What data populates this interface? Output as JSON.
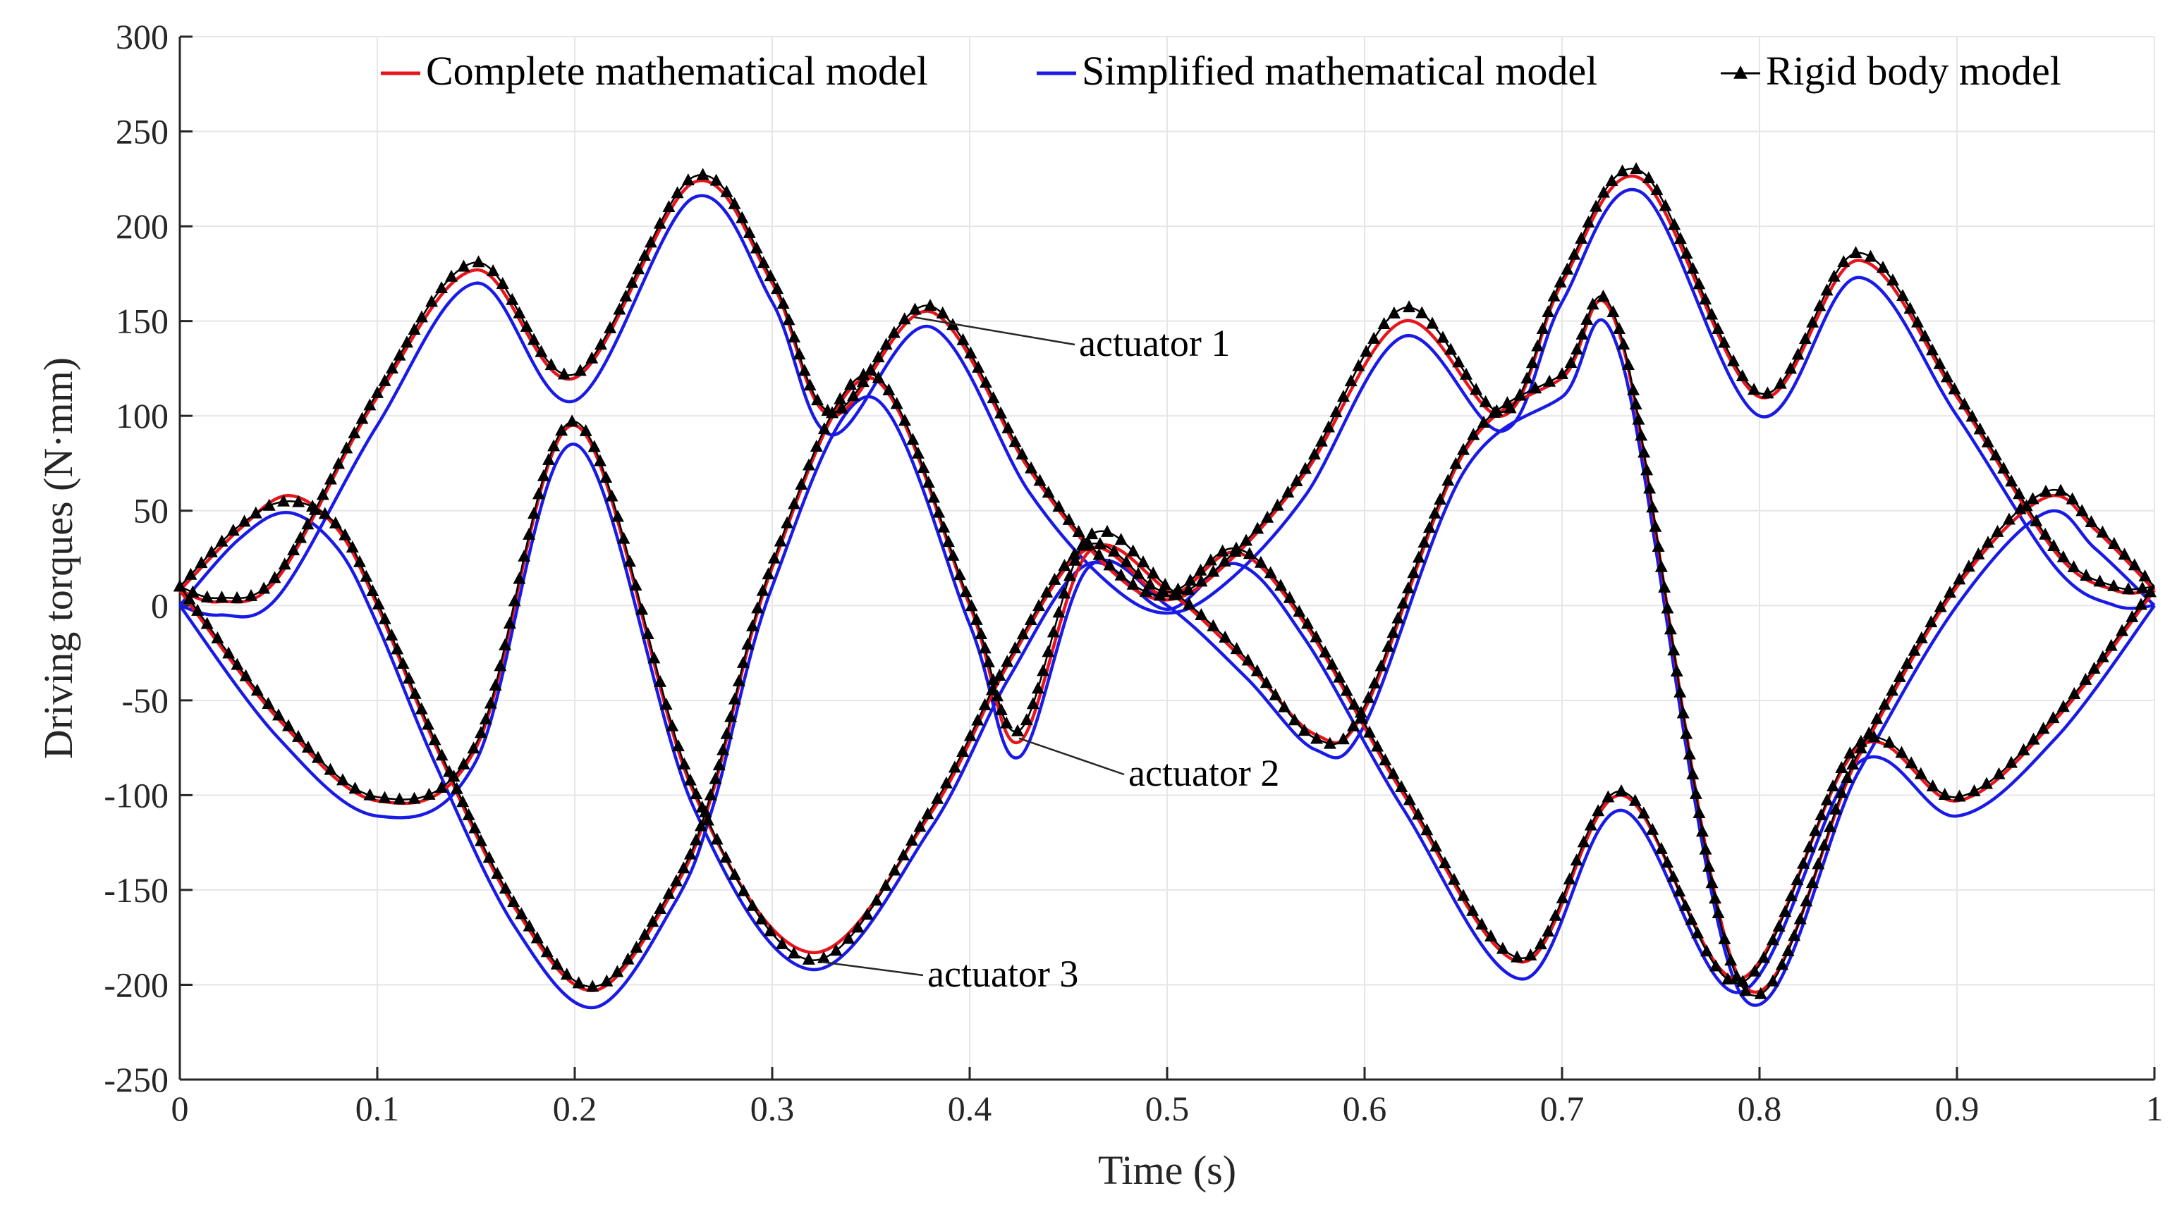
{
  "chart_data": {
    "type": "line",
    "title": "",
    "xlabel": "Time (s)",
    "ylabel": "Driving torques (N·mm)",
    "xlim": [
      0,
      1
    ],
    "ylim": [
      -250,
      300
    ],
    "xticks": [
      0,
      0.1,
      0.2,
      0.3,
      0.4,
      0.5,
      0.6,
      0.7,
      0.8,
      0.9,
      1
    ],
    "xtick_labels": [
      "0",
      "0.1",
      "0.2",
      "0.3",
      "0.4",
      "0.5",
      "0.6",
      "0.7",
      "0.8",
      "0.9",
      "1"
    ],
    "yticks": [
      -250,
      -200,
      -150,
      -100,
      -50,
      0,
      50,
      100,
      150,
      200,
      250,
      300
    ],
    "ytick_labels": [
      "-250",
      "-200",
      "-150",
      "-100",
      "-50",
      "0",
      "50",
      "100",
      "150",
      "200",
      "250",
      "300"
    ],
    "grid": true,
    "legend": {
      "placement": "top-right",
      "entries": [
        {
          "label": "Complete mathematical model",
          "color": "#e8141c",
          "marker": "none"
        },
        {
          "label": "Simplified mathematical model",
          "color": "#1a1ae6",
          "marker": "none"
        },
        {
          "label": "Rigid body model",
          "color": "#000000",
          "marker": "triangle"
        }
      ]
    },
    "series": [
      {
        "legend_label": "Complete mathematical model",
        "actuator": "actuator 1",
        "color": "#e8141c",
        "x": [
          0,
          0.02,
          0.05,
          0.1,
          0.15,
          0.2,
          0.26,
          0.3,
          0.33,
          0.38,
          0.43,
          0.47,
          0.5,
          0.53,
          0.57,
          0.62,
          0.67,
          0.7,
          0.74,
          0.8,
          0.85,
          0.9,
          0.95,
          0.98,
          1
        ],
        "y": [
          8,
          2,
          15,
          110,
          177,
          120,
          223,
          170,
          100,
          155,
          72,
          20,
          3,
          22,
          70,
          150,
          100,
          170,
          225,
          110,
          182,
          110,
          28,
          8,
          8
        ]
      },
      {
        "legend_label": "Simplified mathematical model",
        "actuator": "actuator 1",
        "color": "#1a1ae6",
        "x": [
          0,
          0.02,
          0.05,
          0.1,
          0.15,
          0.2,
          0.26,
          0.3,
          0.33,
          0.38,
          0.43,
          0.47,
          0.5,
          0.53,
          0.57,
          0.62,
          0.67,
          0.7,
          0.74,
          0.8,
          0.85,
          0.9,
          0.95,
          0.98,
          1
        ],
        "y": [
          0,
          -5,
          5,
          95,
          170,
          108,
          215,
          160,
          90,
          147,
          60,
          12,
          -4,
          12,
          58,
          142,
          92,
          160,
          218,
          100,
          173,
          100,
          20,
          0,
          0
        ]
      },
      {
        "legend_label": "Complete mathematical model",
        "actuator": "actuator 2",
        "color": "#e8141c",
        "x": [
          0,
          0.03,
          0.055,
          0.08,
          0.1,
          0.13,
          0.17,
          0.21,
          0.25,
          0.27,
          0.3,
          0.35,
          0.4,
          0.425,
          0.46,
          0.5,
          0.54,
          0.575,
          0.6,
          0.65,
          0.7,
          0.73,
          0.79,
          0.85,
          0.9,
          0.945,
          0.97,
          1
        ],
        "y": [
          8,
          40,
          58,
          40,
          0,
          -75,
          -160,
          -203,
          -150,
          -98,
          20,
          120,
          0,
          -72,
          28,
          8,
          -30,
          -68,
          -55,
          80,
          120,
          140,
          -197,
          -80,
          10,
          57,
          40,
          8
        ]
      },
      {
        "legend_label": "Simplified mathematical model",
        "actuator": "actuator 2",
        "color": "#1a1ae6",
        "x": [
          0,
          0.03,
          0.055,
          0.08,
          0.1,
          0.13,
          0.17,
          0.21,
          0.25,
          0.27,
          0.3,
          0.35,
          0.4,
          0.425,
          0.46,
          0.5,
          0.54,
          0.575,
          0.6,
          0.65,
          0.7,
          0.73,
          0.79,
          0.85,
          0.9,
          0.945,
          0.97,
          1
        ],
        "y": [
          0,
          35,
          49,
          30,
          -10,
          -85,
          -170,
          -212,
          -158,
          -106,
          10,
          110,
          -10,
          -80,
          20,
          0,
          -38,
          -76,
          -63,
          70,
          110,
          130,
          -204,
          -88,
          0,
          49,
          30,
          0
        ]
      },
      {
        "legend_label": "Complete mathematical model",
        "actuator": "actuator 3",
        "color": "#e8141c",
        "x": [
          0,
          0.05,
          0.1,
          0.15,
          0.2,
          0.26,
          0.32,
          0.38,
          0.42,
          0.46,
          0.5,
          0.535,
          0.57,
          0.62,
          0.68,
          0.73,
          0.79,
          0.85,
          0.9,
          0.95,
          1
        ],
        "y": [
          8,
          -60,
          -103,
          -75,
          95,
          -98,
          -183,
          -110,
          -30,
          30,
          5,
          28,
          -10,
          -100,
          -188,
          -100,
          -197,
          -75,
          -103,
          -60,
          8
        ]
      },
      {
        "legend_label": "Simplified mathematical model",
        "actuator": "actuator 3",
        "color": "#1a1ae6",
        "x": [
          0,
          0.05,
          0.1,
          0.15,
          0.2,
          0.26,
          0.32,
          0.38,
          0.42,
          0.46,
          0.5,
          0.535,
          0.57,
          0.62,
          0.68,
          0.73,
          0.79,
          0.85,
          0.9,
          0.95,
          1
        ],
        "y": [
          0,
          -70,
          -111,
          -82,
          85,
          -106,
          -192,
          -118,
          -38,
          22,
          -2,
          22,
          -18,
          -108,
          -197,
          -108,
          -204,
          -83,
          -111,
          -70,
          0
        ]
      },
      {
        "legend_label": "Rigid body model",
        "actuator": "actuator 1",
        "color": "#000000",
        "x": [
          0,
          0.02,
          0.05,
          0.1,
          0.15,
          0.2,
          0.26,
          0.3,
          0.33,
          0.38,
          0.43,
          0.47,
          0.5,
          0.53,
          0.57,
          0.62,
          0.67,
          0.7,
          0.74,
          0.8,
          0.85,
          0.9,
          0.95,
          0.98,
          1
        ],
        "y": [
          10,
          4,
          17,
          112,
          181,
          122,
          226,
          172,
          102,
          158,
          74,
          22,
          5,
          24,
          72,
          157,
          102,
          172,
          229,
          112,
          186,
          112,
          30,
          10,
          10
        ]
      },
      {
        "legend_label": "Rigid body model",
        "actuator": "actuator 2",
        "color": "#000000",
        "x": [
          0,
          0.03,
          0.055,
          0.08,
          0.1,
          0.13,
          0.17,
          0.21,
          0.25,
          0.27,
          0.3,
          0.35,
          0.4,
          0.425,
          0.46,
          0.5,
          0.54,
          0.575,
          0.6,
          0.65,
          0.7,
          0.73,
          0.79,
          0.85,
          0.9,
          0.945,
          0.97,
          1
        ],
        "y": [
          10,
          42,
          55,
          42,
          2,
          -73,
          -158,
          -201,
          -148,
          -96,
          22,
          122,
          2,
          -66,
          36,
          10,
          -28,
          -70,
          -53,
          82,
          122,
          142,
          -199,
          -78,
          12,
          60,
          42,
          10
        ]
      },
      {
        "legend_label": "Rigid body model",
        "actuator": "actuator 3",
        "color": "#000000",
        "x": [
          0,
          0.05,
          0.1,
          0.15,
          0.2,
          0.26,
          0.32,
          0.38,
          0.42,
          0.46,
          0.5,
          0.535,
          0.57,
          0.62,
          0.68,
          0.73,
          0.79,
          0.85,
          0.9,
          0.95,
          1
        ],
        "y": [
          10,
          -58,
          -101,
          -73,
          97,
          -96,
          -187,
          -108,
          -28,
          32,
          7,
          30,
          -8,
          -98,
          -186,
          -98,
          -199,
          -73,
          -101,
          -58,
          10
        ]
      }
    ],
    "annotations": [
      {
        "text": "actuator 1",
        "x": 0.395,
        "y": 146
      },
      {
        "text": "actuator 2",
        "x": 0.445,
        "y": -85
      },
      {
        "text": "actuator 3",
        "x": 0.33,
        "y": -190
      }
    ]
  }
}
